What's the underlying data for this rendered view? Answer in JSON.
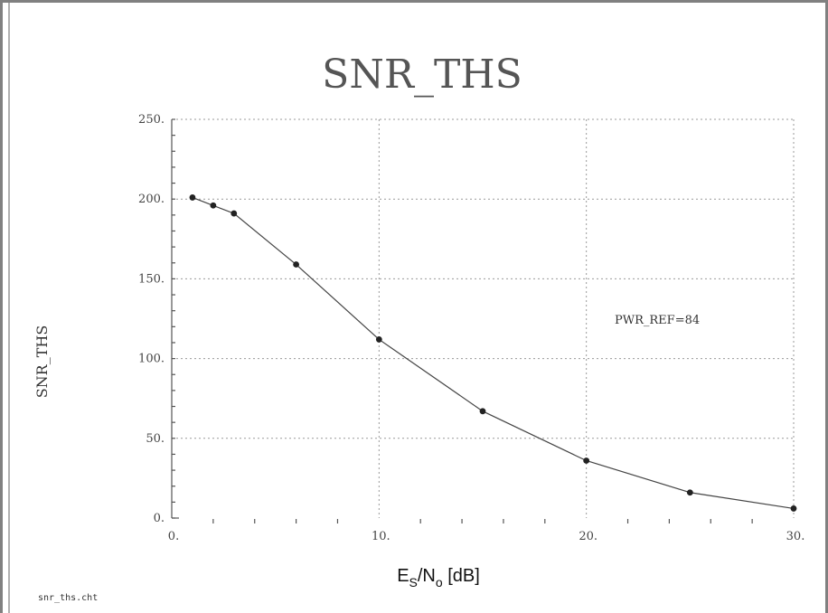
{
  "chart_data": {
    "type": "line",
    "title": "SNR_THS",
    "ylabel": "SNR_THS",
    "xlabel": {
      "main_e": "E",
      "sub_s": "S",
      "mid": "/N",
      "sub_o": "o",
      "tail": " [dB]"
    },
    "xlim": [
      0,
      30
    ],
    "ylim": [
      0,
      250
    ],
    "x_ticks": [
      {
        "value": 0,
        "label": "0."
      },
      {
        "value": 10,
        "label": "10."
      },
      {
        "value": 20,
        "label": "20."
      },
      {
        "value": 30,
        "label": "30."
      }
    ],
    "y_ticks": [
      {
        "value": 0,
        "label": "0."
      },
      {
        "value": 50,
        "label": "50."
      },
      {
        "value": 100,
        "label": "100."
      },
      {
        "value": 150,
        "label": "150."
      },
      {
        "value": 200,
        "label": "200."
      },
      {
        "value": 250,
        "label": "250."
      }
    ],
    "grid": true,
    "series": [
      {
        "x": [
          1,
          2,
          3,
          6,
          10,
          15,
          20,
          25,
          30
        ],
        "y": [
          201,
          196,
          191,
          159,
          112,
          67,
          36,
          16,
          6
        ]
      }
    ],
    "annotation": "PWR_REF=84",
    "footer": "snr_ths.cht"
  }
}
